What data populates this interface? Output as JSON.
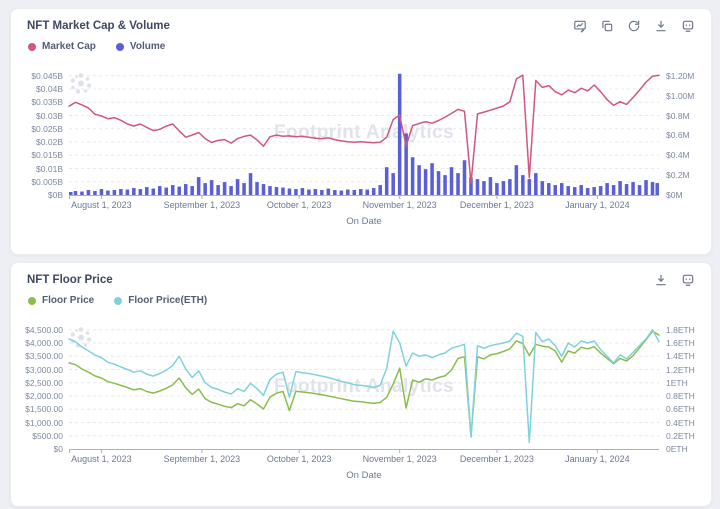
{
  "watermark_text": "Footprint Analytics",
  "chart_data": [
    {
      "type": "line+bar",
      "title": "NFT Market Cap & Volume",
      "watermark": "Footprint Analytics",
      "toolbar_icons": [
        "edit-chart",
        "copy",
        "refresh",
        "download",
        "api"
      ],
      "x_axis": {
        "title": "On Date",
        "total_days": 182,
        "ticks": [
          {
            "label": "August 1, 2023",
            "day": 10
          },
          {
            "label": "September 1, 2023",
            "day": 41
          },
          {
            "label": "October 1, 2023",
            "day": 71
          },
          {
            "label": "November 1, 2023",
            "day": 102
          },
          {
            "label": "December 1, 2023",
            "day": 132
          },
          {
            "label": "January 1, 2024",
            "day": 163
          }
        ]
      },
      "left_axis": {
        "max": 0.0468,
        "ticks": [
          {
            "label": "$0.045B",
            "v": 0.045
          },
          {
            "label": "$0.04B",
            "v": 0.04
          },
          {
            "label": "$0.035B",
            "v": 0.035
          },
          {
            "label": "$0.03B",
            "v": 0.03
          },
          {
            "label": "$0.025B",
            "v": 0.025
          },
          {
            "label": "$0.02B",
            "v": 0.02
          },
          {
            "label": "$0.015B",
            "v": 0.015
          },
          {
            "label": "$0.01B",
            "v": 0.01
          },
          {
            "label": "$0.005B",
            "v": 0.005
          },
          {
            "label": "$0B",
            "v": 0
          }
        ]
      },
      "right_axis": {
        "max": 1.248,
        "ticks": [
          {
            "label": "$1.20M",
            "v": 1.2
          },
          {
            "label": "$1.00M",
            "v": 1.0
          },
          {
            "label": "$0.8M",
            "v": 0.8
          },
          {
            "label": "$0.6M",
            "v": 0.6
          },
          {
            "label": "$0.4M",
            "v": 0.4
          },
          {
            "label": "$0.2M",
            "v": 0.2
          },
          {
            "label": "$0M",
            "v": 0
          }
        ]
      },
      "series": [
        {
          "name": "Market Cap",
          "type": "line",
          "axis": "left",
          "color": "#d0577f",
          "unit": "$B",
          "values": [
            0.0335,
            0.035,
            0.034,
            0.0328,
            0.0305,
            0.0298,
            0.0288,
            0.0292,
            0.0282,
            0.0268,
            0.026,
            0.0268,
            0.0255,
            0.0243,
            0.0248,
            0.026,
            0.0268,
            0.0242,
            0.0218,
            0.0226,
            0.0236,
            0.0213,
            0.0198,
            0.0206,
            0.0209,
            0.0196,
            0.0213,
            0.0221,
            0.0226,
            0.0208,
            0.0184,
            0.022,
            0.0226,
            0.0222,
            0.0223,
            0.022,
            0.0222,
            0.0218,
            0.0214,
            0.0212,
            0.0216,
            0.0209,
            0.0204,
            0.0201,
            0.0199,
            0.0201,
            0.0199,
            0.0197,
            0.0199,
            0.0218,
            0.0285,
            0.0302,
            0.0185,
            0.0262,
            0.027,
            0.0277,
            0.0271,
            0.0281,
            0.0294,
            0.0308,
            0.0323,
            0.0316,
            0.0045,
            0.0306,
            0.0313,
            0.032,
            0.0328,
            0.0336,
            0.0352,
            0.0438,
            0.0452,
            0.0065,
            0.0432,
            0.0406,
            0.0413,
            0.039,
            0.0378,
            0.0396,
            0.0386,
            0.0403,
            0.0393,
            0.0415,
            0.039,
            0.036,
            0.0338,
            0.0352,
            0.0342,
            0.0368,
            0.0396,
            0.0426,
            0.0448,
            0.0452
          ]
        },
        {
          "name": "Volume",
          "type": "bar",
          "axis": "right",
          "color": "#5a5fd8",
          "unit": "$M",
          "values": [
            0.03,
            0.04,
            0.035,
            0.05,
            0.04,
            0.06,
            0.045,
            0.05,
            0.06,
            0.055,
            0.07,
            0.06,
            0.08,
            0.065,
            0.09,
            0.075,
            0.1,
            0.085,
            0.11,
            0.09,
            0.18,
            0.12,
            0.15,
            0.1,
            0.13,
            0.09,
            0.16,
            0.12,
            0.22,
            0.13,
            0.11,
            0.09,
            0.08,
            0.075,
            0.065,
            0.06,
            0.07,
            0.055,
            0.06,
            0.05,
            0.065,
            0.05,
            0.045,
            0.055,
            0.05,
            0.06,
            0.055,
            0.07,
            0.1,
            0.28,
            0.22,
            1.22,
            0.62,
            0.38,
            0.3,
            0.26,
            0.32,
            0.24,
            0.2,
            0.28,
            0.22,
            0.35,
            0.18,
            0.16,
            0.14,
            0.18,
            0.12,
            0.14,
            0.16,
            0.3,
            0.2,
            0.16,
            0.22,
            0.14,
            0.12,
            0.1,
            0.12,
            0.09,
            0.08,
            0.1,
            0.07,
            0.08,
            0.09,
            0.12,
            0.1,
            0.14,
            0.11,
            0.13,
            0.1,
            0.15,
            0.13,
            0.12
          ]
        }
      ]
    },
    {
      "type": "line",
      "title": "NFT Floor Price",
      "watermark": "Footprint Analytics",
      "toolbar_icons": [
        "download",
        "api"
      ],
      "x_axis": {
        "title": "On Date",
        "total_days": 182,
        "ticks": [
          {
            "label": "August 1, 2023",
            "day": 10
          },
          {
            "label": "September 1, 2023",
            "day": 41
          },
          {
            "label": "October 1, 2023",
            "day": 71
          },
          {
            "label": "November 1, 2023",
            "day": 102
          },
          {
            "label": "December 1, 2023",
            "day": 132
          },
          {
            "label": "January 1, 2024",
            "day": 163
          }
        ]
      },
      "left_axis": {
        "max": 4680,
        "ticks": [
          {
            "label": "$4,500.00",
            "v": 4500
          },
          {
            "label": "$4,000.00",
            "v": 4000
          },
          {
            "label": "$3,500.00",
            "v": 3500
          },
          {
            "label": "$3,000.00",
            "v": 3000
          },
          {
            "label": "$2,500.00",
            "v": 2500
          },
          {
            "label": "$2,000.00",
            "v": 2000
          },
          {
            "label": "$1,500.00",
            "v": 1500
          },
          {
            "label": "$1,000.00",
            "v": 1000
          },
          {
            "label": "$500.00",
            "v": 500
          },
          {
            "label": "$0",
            "v": 0
          }
        ]
      },
      "right_axis": {
        "max": 1.872,
        "ticks": [
          {
            "label": "1.8ETH",
            "v": 1.8
          },
          {
            "label": "1.6ETH",
            "v": 1.6
          },
          {
            "label": "1.4ETH",
            "v": 1.4
          },
          {
            "label": "1.2ETH",
            "v": 1.2
          },
          {
            "label": "1ETH",
            "v": 1.0
          },
          {
            "label": "0.8ETH",
            "v": 0.8
          },
          {
            "label": "0.6ETH",
            "v": 0.6
          },
          {
            "label": "0.4ETH",
            "v": 0.4
          },
          {
            "label": "0.2ETH",
            "v": 0.2
          },
          {
            "label": "0ETH",
            "v": 0
          }
        ]
      },
      "series": [
        {
          "name": "Floor Price",
          "type": "line",
          "axis": "left",
          "color": "#8bbd4d",
          "unit": "$",
          "values": [
            3250,
            3180,
            3020,
            2900,
            2760,
            2680,
            2540,
            2480,
            2400,
            2320,
            2230,
            2280,
            2170,
            2110,
            2190,
            2290,
            2420,
            2680,
            2310,
            2060,
            2260,
            1900,
            1760,
            1690,
            1610,
            1560,
            1710,
            1630,
            1860,
            1700,
            1510,
            1960,
            2110,
            2170,
            1450,
            2180,
            2150,
            2120,
            2090,
            2050,
            2000,
            1950,
            1900,
            1850,
            1800,
            1780,
            1750,
            1720,
            1760,
            1950,
            2450,
            3050,
            1550,
            2600,
            2520,
            2650,
            2600,
            2700,
            2760,
            2980,
            3420,
            3480,
            480,
            3480,
            3400,
            3550,
            3600,
            3680,
            3780,
            4080,
            3980,
            3520,
            3950,
            3880,
            3850,
            3700,
            3280,
            3700,
            3620,
            3840,
            3780,
            3860,
            3620,
            3420,
            3220,
            3420,
            3320,
            3520,
            3820,
            4120,
            4450,
            4300
          ]
        },
        {
          "name": "Floor Price(ETH)",
          "type": "line",
          "axis": "right",
          "color": "#7fd2dc",
          "unit": "ETH",
          "values": [
            1.66,
            1.62,
            1.54,
            1.48,
            1.42,
            1.38,
            1.31,
            1.28,
            1.24,
            1.2,
            1.16,
            1.18,
            1.13,
            1.1,
            1.14,
            1.19,
            1.26,
            1.4,
            1.21,
            1.08,
            1.18,
            1.0,
            0.93,
            0.9,
            0.86,
            0.83,
            0.91,
            0.87,
            0.99,
            0.91,
            0.81,
            1.05,
            1.13,
            1.16,
            0.78,
            1.17,
            1.15,
            1.14,
            1.12,
            1.1,
            1.08,
            1.05,
            1.02,
            1.0,
            0.97,
            0.96,
            0.95,
            0.93,
            0.96,
            1.22,
            1.78,
            1.6,
            1.25,
            1.45,
            1.4,
            1.42,
            1.38,
            1.42,
            1.45,
            1.52,
            1.55,
            1.58,
            0.18,
            1.56,
            1.52,
            1.56,
            1.58,
            1.6,
            1.63,
            1.75,
            1.7,
            0.1,
            1.76,
            1.62,
            1.66,
            1.56,
            1.4,
            1.6,
            1.54,
            1.63,
            1.6,
            1.63,
            1.5,
            1.4,
            1.3,
            1.42,
            1.36,
            1.46,
            1.56,
            1.66,
            1.8,
            1.62
          ]
        }
      ]
    }
  ]
}
